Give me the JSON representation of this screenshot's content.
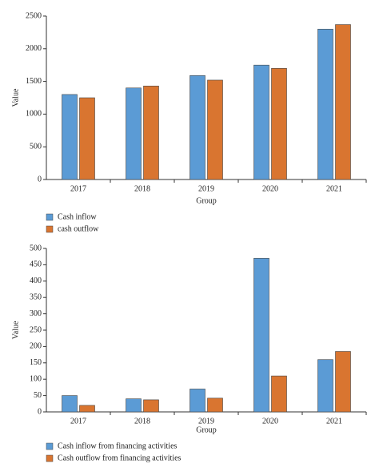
{
  "chart_data": [
    {
      "type": "bar",
      "x_label": "Group",
      "y_label": "Value",
      "categories": [
        "2017",
        "2018",
        "2019",
        "2020",
        "2021"
      ],
      "series": [
        {
          "name": "Cash inflow",
          "color": "#5b9bd5",
          "values": [
            1300,
            1400,
            1590,
            1750,
            2300
          ]
        },
        {
          "name": "cash outflow",
          "color": "#d97530",
          "values": [
            1250,
            1430,
            1520,
            1700,
            2370
          ]
        }
      ],
      "ylim": [
        0,
        2500
      ],
      "yticks": [
        0,
        500,
        1000,
        1500,
        2000,
        2500
      ]
    },
    {
      "type": "bar",
      "x_label": "Group",
      "y_label": "Value",
      "categories": [
        "2017",
        "2018",
        "2019",
        "2020",
        "2021"
      ],
      "series": [
        {
          "name": "Cash inflow from financing activities",
          "color": "#5b9bd5",
          "values": [
            50,
            40,
            70,
            470,
            160
          ]
        },
        {
          "name": "Cash outflow from financing activities",
          "color": "#d97530",
          "values": [
            20,
            37,
            42,
            110,
            185
          ]
        }
      ],
      "ylim": [
        0,
        500
      ],
      "yticks": [
        0,
        50,
        100,
        150,
        200,
        250,
        300,
        350,
        400,
        450,
        500
      ]
    }
  ]
}
